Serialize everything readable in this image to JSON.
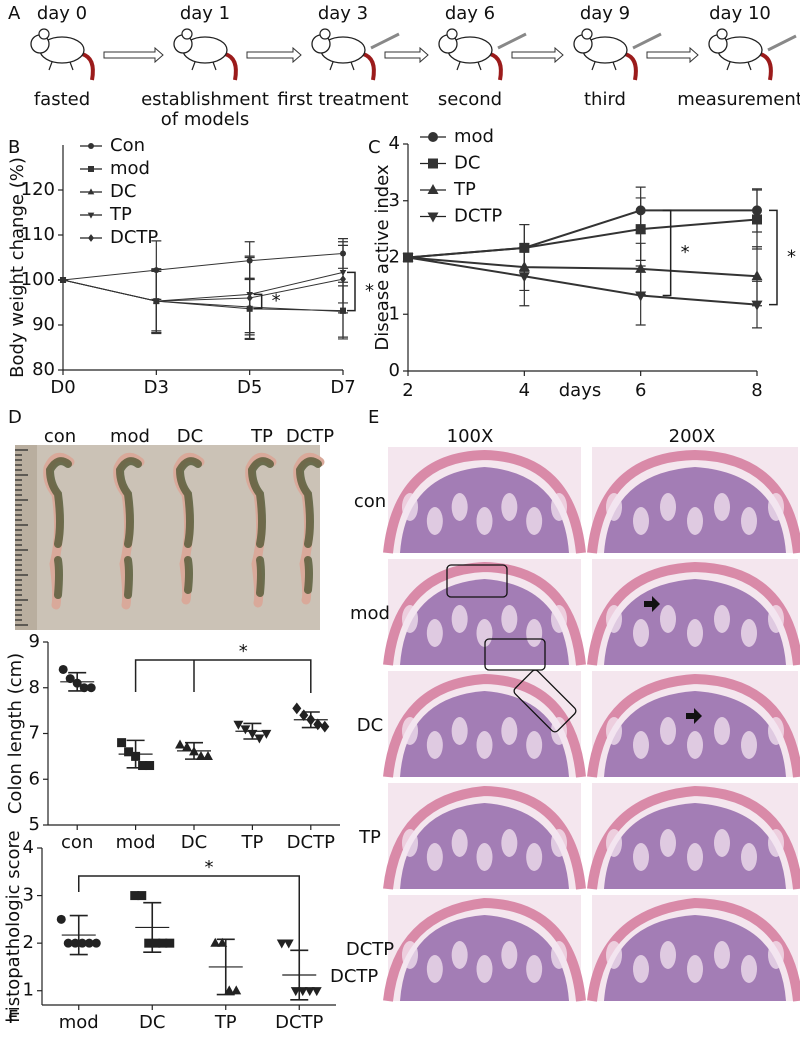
{
  "panels": [
    "A",
    "B",
    "C",
    "D",
    "E",
    "F"
  ],
  "timeline": [
    {
      "day": "day 0",
      "label": [
        "fasted"
      ]
    },
    {
      "day": "day 1",
      "label": [
        "establishment",
        "of models"
      ]
    },
    {
      "day": "day 3",
      "label": [
        "first treatment"
      ]
    },
    {
      "day": "day 6",
      "label": [
        "second"
      ]
    },
    {
      "day": "day 9",
      "label": [
        "third"
      ]
    },
    {
      "day": "day 10",
      "label": [
        "measurement"
      ]
    }
  ],
  "photo": {
    "labels": [
      "con",
      "mod",
      "DC",
      "TP",
      "DCTP"
    ]
  },
  "histology": {
    "columns": [
      "100X",
      "200X"
    ],
    "rows": [
      "con",
      "mod",
      "DC",
      "TP",
      "DCTP"
    ]
  },
  "chart_data": [
    {
      "type": "line",
      "ylabel": "Body weight change (%)",
      "categories": [
        "D0",
        "D3",
        "D5",
        "D7"
      ],
      "ylim": [
        80,
        130
      ],
      "yticks": [
        80,
        90,
        100,
        110,
        120
      ],
      "series": [
        {
          "name": "Con",
          "color": "#333333",
          "marker": "circle",
          "values": [
            100,
            102.2,
            104.3,
            105.9
          ],
          "errors": [
            0,
            6.5,
            4.2,
            3.3
          ]
        },
        {
          "name": "mod",
          "color": "#333333",
          "marker": "square",
          "values": [
            100,
            95.3,
            93.6,
            93.2
          ],
          "errors": [
            0,
            7.2,
            6.8,
            6.3
          ]
        },
        {
          "name": "DC",
          "color": "#333333",
          "marker": "triangle",
          "values": [
            100,
            95.3,
            94,
            93
          ],
          "errors": [
            0,
            6.6,
            6.2,
            5.7
          ]
        },
        {
          "name": "TP",
          "color": "#333333",
          "marker": "triangle-down",
          "values": [
            100,
            95.3,
            96.8,
            101.7
          ],
          "errors": [
            0,
            7,
            8.5,
            6.8
          ]
        },
        {
          "name": "DCTP",
          "color": "#333333",
          "marker": "diamond",
          "values": [
            100,
            95.3,
            96,
            100.2
          ],
          "errors": [
            0,
            7,
            9,
            7.5
          ]
        }
      ],
      "annotations": [
        "*",
        "*"
      ]
    },
    {
      "type": "line",
      "xlabel": "days",
      "ylabel": "Disease active index",
      "x": [
        2,
        4,
        6,
        8
      ],
      "xlim": [
        2,
        8
      ],
      "xticks": [
        2,
        4,
        6,
        8
      ],
      "ylim": [
        0,
        4
      ],
      "yticks": [
        0,
        1,
        2,
        3,
        4
      ],
      "series": [
        {
          "name": "mod",
          "color": "#333333",
          "marker": "circle",
          "values": [
            2,
            2.17,
            2.83,
            2.83
          ],
          "errors": [
            0,
            0.41,
            0.41,
            0.38
          ]
        },
        {
          "name": "DC",
          "color": "#333333",
          "marker": "square",
          "values": [
            2,
            2.17,
            2.5,
            2.67
          ],
          "errors": [
            0,
            0.41,
            0.55,
            0.52
          ]
        },
        {
          "name": "TP",
          "color": "#333333",
          "marker": "triangle",
          "values": [
            2,
            1.83,
            1.8,
            1.67
          ],
          "errors": [
            0,
            0.41,
            0.45,
            0.52
          ]
        },
        {
          "name": "DCTP",
          "color": "#333333",
          "marker": "triangle-down",
          "values": [
            2,
            1.67,
            1.33,
            1.17
          ],
          "errors": [
            0,
            0.52,
            0.52,
            0.41
          ]
        }
      ],
      "annotations": [
        "*",
        "*"
      ]
    },
    {
      "type": "dot",
      "ylabel": "Colon length (cm)",
      "categories": [
        "con",
        "mod",
        "DC",
        "TP",
        "DCTP"
      ],
      "markers": [
        "circle",
        "square",
        "triangle",
        "triangle-down",
        "diamond"
      ],
      "color": "#222222",
      "points": [
        [
          8.4,
          8.2,
          8.1,
          8.0,
          8.0
        ],
        [
          6.8,
          6.6,
          6.5,
          6.3,
          6.3
        ],
        [
          6.75,
          6.7,
          6.6,
          6.5,
          6.5
        ],
        [
          7.2,
          7.1,
          7.0,
          6.9,
          7.0
        ],
        [
          7.55,
          7.4,
          7.3,
          7.2,
          7.15
        ]
      ],
      "means": [
        8.13,
        6.55,
        6.62,
        7.05,
        7.3
      ],
      "sd": [
        0.2,
        0.3,
        0.18,
        0.17,
        0.17
      ],
      "ylim": [
        5,
        9
      ],
      "yticks": [
        5,
        6,
        7,
        8,
        9
      ],
      "annotations": [
        "*"
      ]
    },
    {
      "type": "dot",
      "ylabel": "histopathologic score",
      "categories": [
        "mod",
        "DC",
        "TP",
        "DCTP"
      ],
      "markers": [
        "circle",
        "square",
        "triangle",
        "triangle-down"
      ],
      "color": "#222222",
      "points": [
        [
          2.5,
          2,
          2,
          2,
          2,
          2
        ],
        [
          3,
          3,
          2,
          2,
          2,
          2
        ],
        [
          2,
          2,
          1,
          1
        ],
        [
          2,
          2,
          1,
          1,
          1,
          1
        ]
      ],
      "means": [
        2.17,
        2.33,
        1.5,
        1.33
      ],
      "sd": [
        0.41,
        0.52,
        0.58,
        0.52
      ],
      "ylim": [
        0.7,
        4
      ],
      "yticks": [
        1,
        2,
        3,
        4
      ],
      "side_label": "DCTP",
      "annotations": [
        "*"
      ]
    }
  ]
}
